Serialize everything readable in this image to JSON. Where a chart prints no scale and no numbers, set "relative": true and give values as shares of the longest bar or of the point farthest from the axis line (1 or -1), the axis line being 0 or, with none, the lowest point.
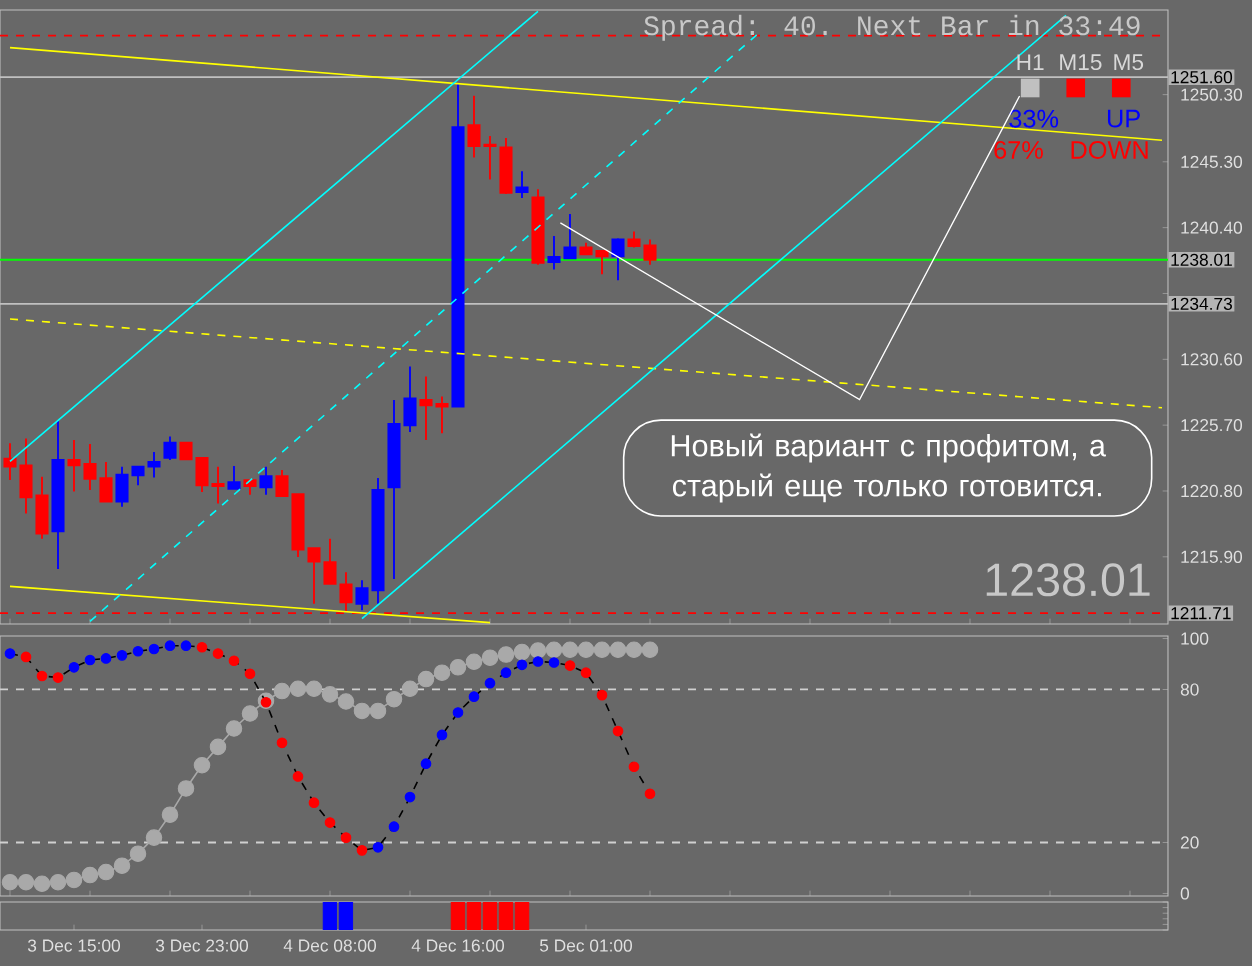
{
  "chart_data": [
    {
      "type": "candlestick",
      "categories": [
        null,
        null,
        null,
        null,
        null,
        null,
        null,
        null,
        null,
        null,
        null,
        null,
        null,
        null,
        null,
        null,
        null,
        null,
        null,
        null,
        null,
        null,
        null,
        null,
        null,
        null,
        null,
        null,
        null,
        null,
        null,
        null,
        null,
        null,
        null,
        null,
        null,
        null,
        null,
        null,
        null,
        null,
        null,
        null,
        null,
        null,
        null,
        null,
        null,
        null,
        null,
        null,
        null,
        null,
        null,
        null,
        null,
        null,
        null,
        null,
        null,
        null,
        null,
        null,
        null,
        null,
        null,
        null,
        null,
        null,
        null,
        null,
        null
      ],
      "ohlc": [
        [
          1223.21,
          1224.35,
          1221.61,
          1222.61
        ],
        [
          1222.71,
          1224.7,
          1219.13,
          1220.32
        ],
        [
          1220.47,
          1221.86,
          1217.24,
          1217.64
        ],
        [
          1217.79,
          1226.0,
          1215.0,
          1223.11
        ],
        [
          1223.11,
          1224.6,
          1220.77,
          1222.71
        ],
        [
          1222.81,
          1224.3,
          1220.87,
          1221.71
        ],
        [
          1221.76,
          1222.96,
          1220.02,
          1220.02
        ],
        [
          1220.02,
          1222.61,
          1219.63,
          1222.01
        ],
        [
          1221.96,
          1222.61,
          1221.22,
          1222.61
        ],
        [
          1222.61,
          1223.7,
          1221.81,
          1222.96
        ],
        [
          1223.26,
          1224.85,
          1223.11,
          1224.4
        ],
        [
          1224.4,
          1224.4,
          1223.11,
          1223.16
        ],
        [
          1223.26,
          1223.26,
          1220.72,
          1221.22
        ],
        [
          1221.32,
          1222.61,
          1219.87,
          1221.17
        ],
        [
          1220.97,
          1222.66,
          1220.97,
          1221.46
        ],
        [
          1221.61,
          1221.61,
          1220.52,
          1221.17
        ],
        [
          1221.07,
          1222.61,
          1220.52,
          1221.91
        ],
        [
          1221.91,
          1222.36,
          1220.42,
          1220.42
        ],
        [
          1220.57,
          1220.57,
          1215.89,
          1216.44
        ],
        [
          1216.54,
          1216.54,
          1212.41,
          1215.55
        ],
        [
          1215.5,
          1217.24,
          1213.9,
          1213.9
        ],
        [
          1213.85,
          1214.75,
          1211.87,
          1212.51
        ],
        [
          1212.41,
          1214.15,
          1211.92,
          1213.56
        ],
        [
          1213.41,
          1221.76,
          1212.41,
          1220.87
        ],
        [
          1221.07,
          1227.58,
          1214.25,
          1225.79
        ],
        [
          1225.69,
          1230.07,
          1225.19,
          1227.68
        ],
        [
          1227.58,
          1229.32,
          1224.6,
          1227.18
        ],
        [
          1227.28,
          1227.83,
          1225.09,
          1227.08
        ],
        [
          1227.08,
          1251.1,
          1227.08,
          1247.87
        ],
        [
          1248.02,
          1250.21,
          1245.63,
          1246.48
        ],
        [
          1246.58,
          1247.23,
          1243.99,
          1246.48
        ],
        [
          1246.38,
          1247.08,
          1242.9,
          1243.0
        ],
        [
          1243.05,
          1244.59,
          1242.6,
          1243.4
        ],
        [
          1242.65,
          1243.25,
          1237.63,
          1237.78
        ],
        [
          1237.83,
          1239.77,
          1237.28,
          1238.22
        ],
        [
          1238.12,
          1241.41,
          1238.12,
          1238.92
        ],
        [
          1238.92,
          1239.27,
          1238.42,
          1238.42
        ],
        [
          1238.67,
          1238.67,
          1236.93,
          1238.27
        ],
        [
          1238.27,
          1239.62,
          1236.48,
          1239.52
        ],
        [
          1239.52,
          1240.11,
          1238.92,
          1239.02
        ],
        [
          1239.07,
          1239.52,
          1237.63,
          1238.01
        ],
        null,
        null,
        null,
        null,
        null,
        null,
        null,
        null,
        null,
        null,
        null,
        null,
        null,
        null,
        null,
        null,
        null,
        null,
        null,
        null,
        null,
        null,
        null,
        null,
        null,
        null,
        null,
        null,
        null,
        null,
        null,
        null
      ],
      "colors": [
        "#ff0000",
        "#ff0000",
        "#ff0000",
        "#0000ff",
        "#ff0000",
        "#ff0000",
        "#ff0000",
        "#0000ff",
        "#0000ff",
        "#0000ff",
        "#0000ff",
        "#ff0000",
        "#ff0000",
        "#ff0000",
        "#0000ff",
        "#ff0000",
        "#0000ff",
        "#ff0000",
        "#ff0000",
        "#ff0000",
        "#ff0000",
        "#ff0000",
        "#0000ff",
        "#0000ff",
        "#0000ff",
        "#0000ff",
        "#ff0000",
        "#ff0000",
        "#0000ff",
        "#ff0000",
        "#ff0000",
        "#ff0000",
        "#0000ff",
        "#ff0000",
        "#0000ff",
        "#0000ff",
        "#ff0000",
        "#ff0000",
        "#0000ff",
        "#ff0000",
        "#ff0000",
        null,
        null,
        null,
        null,
        null,
        null,
        null,
        null,
        null,
        null,
        null,
        null,
        null,
        null,
        null,
        null,
        null,
        null,
        null,
        null,
        null,
        null,
        null,
        null,
        null,
        null,
        null,
        null,
        null,
        null,
        null,
        null
      ],
      "series": [
        {
          "type": "line",
          "color": "#ffff00",
          "values": [
            1253.8,
            null,
            null,
            null,
            null,
            null,
            null,
            null,
            null,
            null,
            null,
            null,
            null,
            null,
            null,
            null,
            null,
            null,
            null,
            null,
            null,
            null,
            null,
            null,
            null,
            null,
            null,
            null,
            null,
            null,
            null,
            null,
            null,
            null,
            null,
            null,
            null,
            null,
            null,
            null,
            null,
            null,
            null,
            null,
            null,
            null,
            null,
            null,
            null,
            null,
            null,
            null,
            null,
            null,
            null,
            null,
            null,
            null,
            null,
            null,
            null,
            null,
            null,
            null,
            null,
            null,
            null,
            null,
            null,
            null,
            null,
            null,
            1246.9
          ]
        },
        {
          "type": "line",
          "color": "#ffff00",
          "values": [
            1213.7,
            null,
            null,
            null,
            null,
            null,
            null,
            null,
            null,
            null,
            null,
            null,
            null,
            null,
            null,
            null,
            null,
            null,
            null,
            null,
            null,
            null,
            null,
            null,
            null,
            null,
            null,
            null,
            null,
            null,
            1211.0,
            null,
            null,
            null,
            null,
            null,
            null,
            null,
            null,
            null,
            null,
            null,
            null,
            null,
            null,
            null,
            null,
            null,
            null,
            null,
            null,
            null,
            null,
            null,
            null,
            null,
            null,
            null,
            null,
            null,
            null,
            null,
            null,
            null,
            null,
            null,
            null,
            null,
            null,
            null,
            null,
            null,
            null
          ]
        },
        {
          "type": "line",
          "color": "#ffff00",
          "line_style": "dashed",
          "values": [
            1233.6,
            null,
            null,
            null,
            null,
            null,
            null,
            null,
            null,
            null,
            null,
            null,
            null,
            null,
            null,
            null,
            null,
            null,
            null,
            null,
            null,
            null,
            null,
            null,
            null,
            null,
            null,
            null,
            null,
            null,
            null,
            null,
            null,
            null,
            null,
            null,
            null,
            null,
            null,
            null,
            null,
            null,
            null,
            null,
            null,
            null,
            null,
            null,
            null,
            null,
            null,
            null,
            null,
            null,
            null,
            null,
            null,
            null,
            null,
            null,
            null,
            null,
            null,
            null,
            null,
            null,
            null,
            null,
            null,
            null,
            null,
            null,
            1227.0
          ]
        },
        {
          "type": "line",
          "color": "#00ffff",
          "values": [
            1223.0,
            null,
            null,
            null,
            null,
            null,
            null,
            null,
            null,
            null,
            null,
            null,
            null,
            null,
            null,
            null,
            null,
            null,
            null,
            null,
            null,
            null,
            null,
            null,
            null,
            null,
            null,
            null,
            null,
            null,
            null,
            null,
            null,
            1256.5,
            null,
            null,
            null,
            null,
            null,
            null,
            null,
            null,
            null,
            null,
            null,
            null,
            null,
            null,
            null,
            null,
            null,
            null,
            null,
            null,
            null,
            null,
            null,
            null,
            null,
            null,
            null,
            null,
            null,
            null,
            null,
            null,
            null,
            null,
            null,
            null,
            null,
            null,
            null
          ]
        },
        {
          "type": "line",
          "color": "#00ffff",
          "values": [
            null,
            null,
            null,
            null,
            null,
            null,
            null,
            null,
            null,
            null,
            null,
            null,
            null,
            null,
            null,
            null,
            null,
            null,
            null,
            null,
            null,
            null,
            1211.3,
            null,
            null,
            null,
            null,
            null,
            null,
            null,
            null,
            null,
            null,
            null,
            null,
            null,
            null,
            null,
            null,
            null,
            null,
            null,
            null,
            null,
            null,
            null,
            null,
            null,
            null,
            null,
            null,
            null,
            null,
            null,
            null,
            null,
            null,
            null,
            null,
            null,
            null,
            null,
            null,
            null,
            null,
            null,
            1256.2,
            null,
            null,
            null,
            null,
            null,
            null
          ]
        },
        {
          "type": "line",
          "color": "#00ffff",
          "line_style": "dashed",
          "values": [
            null,
            null,
            null,
            null,
            null,
            1211.1,
            null,
            null,
            null,
            null,
            null,
            null,
            null,
            null,
            null,
            null,
            null,
            null,
            null,
            null,
            null,
            null,
            null,
            null,
            null,
            null,
            null,
            null,
            null,
            null,
            null,
            null,
            null,
            null,
            null,
            null,
            null,
            null,
            null,
            null,
            null,
            null,
            null,
            null,
            null,
            null,
            null,
            1255.1,
            null,
            null,
            null,
            null,
            null,
            null,
            null,
            null,
            null,
            null,
            null,
            null,
            null,
            null,
            null,
            null,
            null,
            null,
            null,
            null,
            null,
            null,
            null,
            null,
            null
          ]
        }
      ],
      "ylim": [
        1210.9,
        1256.6
      ],
      "yticks": [
        {
          "value": 1215.9,
          "label": "1215.90"
        },
        {
          "value": 1220.8,
          "label": "1220.80"
        },
        {
          "value": 1225.7,
          "label": "1225.70"
        },
        {
          "value": 1230.6,
          "label": "1230.60"
        },
        {
          "value": 1235.5,
          "label": null
        },
        {
          "value": 1240.4,
          "label": "1240.40"
        },
        {
          "value": 1245.3,
          "label": "1245.30"
        },
        {
          "value": 1250.3,
          "label": "1250.30"
        }
      ],
      "ref_lines": [
        {
          "axis": "y",
          "value": 1254.69,
          "color": "#ff0000",
          "line_style": "dashed"
        },
        {
          "axis": "y",
          "value": 1251.6,
          "label": "1251.60",
          "color": "#c0c0c0"
        },
        {
          "axis": "y",
          "value": 1238.01,
          "label": "1238.01",
          "color": "#00ff00"
        },
        {
          "axis": "y",
          "value": 1234.73,
          "label": "1234.73",
          "color": "#c0c0c0"
        },
        {
          "axis": "y",
          "value": 1211.71,
          "label": "1211.71",
          "color": "#ff0000",
          "line_style": "dashed"
        }
      ],
      "annotations": [
        "Spread: 40. Next Bar in 33:49",
        "H1",
        "M15",
        "M5",
        "33%",
        "UP",
        "67%",
        "DOWN",
        "Новый вариант с профитом, а старый еще только готовится.",
        "1238.01"
      ],
      "tick_labels": "y"
    },
    {
      "type": "line",
      "categories": [
        null,
        null,
        null,
        null,
        null,
        null,
        null,
        null,
        null,
        null,
        null,
        null,
        null,
        null,
        null,
        null,
        null,
        null,
        null,
        null,
        null,
        null,
        null,
        null,
        null,
        null,
        null,
        null,
        null,
        null,
        null,
        null,
        null,
        null,
        null,
        null,
        null,
        null,
        null,
        null,
        null
      ],
      "marker": "circle",
      "series": [
        {
          "color": "#a9a9a9",
          "values": [
            4.4,
            4.4,
            3.8,
            4.4,
            5.3,
            7.2,
            8.4,
            10.9,
            15.6,
            21.9,
            30.9,
            41.2,
            50.3,
            57.5,
            64.7,
            70.6,
            75.6,
            79.4,
            80.3,
            80.3,
            78.1,
            75.3,
            71.6,
            71.6,
            76.2,
            80.3,
            84.1,
            86.6,
            88.7,
            90.9,
            92.5,
            93.7,
            94.7,
            95.3,
            95.6,
            95.6,
            95.6,
            95.6,
            95.6,
            95.6,
            95.6
          ]
        },
        {
          "color": "#000000",
          "line_style": "dashed",
          "values": [
            94.1,
            92.8,
            85.3,
            84.7,
            88.7,
            91.6,
            92.2,
            93.4,
            95.0,
            95.9,
            97.2,
            97.2,
            96.6,
            94.1,
            91.3,
            86.2,
            75.0,
            59.1,
            45.9,
            35.6,
            27.8,
            21.9,
            16.9,
            18.1,
            26.2,
            37.8,
            50.9,
            62.2,
            71.0,
            77.2,
            82.5,
            86.6,
            89.7,
            91.0,
            90.6,
            89.4,
            86.6,
            77.8,
            63.7,
            49.7,
            39.1
          ],
          "colors": [
            "#0000ff",
            "#ff0000",
            "#ff0000",
            "#ff0000",
            "#0000ff",
            "#0000ff",
            "#0000ff",
            "#0000ff",
            "#0000ff",
            "#0000ff",
            "#0000ff",
            "#0000ff",
            "#ff0000",
            "#ff0000",
            "#ff0000",
            "#ff0000",
            "#ff0000",
            "#ff0000",
            "#ff0000",
            "#ff0000",
            "#ff0000",
            "#ff0000",
            "#ff0000",
            "#0000ff",
            "#0000ff",
            "#0000ff",
            "#0000ff",
            "#0000ff",
            "#0000ff",
            "#0000ff",
            "#0000ff",
            "#0000ff",
            "#0000ff",
            "#0000ff",
            "#0000ff",
            "#ff0000",
            "#ff0000",
            "#ff0000",
            "#ff0000",
            "#ff0000",
            "#ff0000"
          ]
        }
      ],
      "ylim": [
        -1,
        101
      ],
      "yticks": [
        0,
        20,
        80,
        100
      ],
      "ref_lines": [
        {
          "axis": "y",
          "value": 20,
          "color": "#d0d0d0",
          "line_style": "dashed"
        },
        {
          "axis": "y",
          "value": 80,
          "color": "#d0d0d0",
          "line_style": "dashed"
        }
      ],
      "tick_labels": "y"
    },
    {
      "type": "bar",
      "categories": [
        null,
        null,
        null,
        null,
        "3 Dec 15:00",
        null,
        null,
        null,
        null,
        null,
        null,
        null,
        "3 Dec 23:00",
        null,
        null,
        null,
        null,
        null,
        null,
        null,
        "4 Dec 08:00",
        null,
        null,
        null,
        null,
        null,
        null,
        null,
        "4 Dec 16:00",
        null,
        null,
        null,
        null,
        null,
        null,
        null,
        "5 Dec 01:00",
        null,
        null,
        null,
        null
      ],
      "values": [
        null,
        null,
        null,
        null,
        null,
        null,
        null,
        null,
        null,
        null,
        null,
        null,
        null,
        null,
        null,
        null,
        null,
        null,
        null,
        null,
        1,
        1,
        null,
        null,
        null,
        null,
        null,
        null,
        1,
        1,
        1,
        1,
        1,
        null,
        null,
        null,
        null,
        null,
        null,
        null,
        null
      ],
      "colors": [
        null,
        null,
        null,
        null,
        null,
        null,
        null,
        null,
        null,
        null,
        null,
        null,
        null,
        null,
        null,
        null,
        null,
        null,
        null,
        null,
        "#0000ff",
        "#0000ff",
        null,
        null,
        null,
        null,
        null,
        null,
        "#ff0000",
        "#ff0000",
        "#ff0000",
        "#ff0000",
        "#ff0000",
        null,
        null,
        null,
        null,
        null,
        null,
        null,
        null
      ],
      "relative": true,
      "tick_labels": "x"
    }
  ]
}
